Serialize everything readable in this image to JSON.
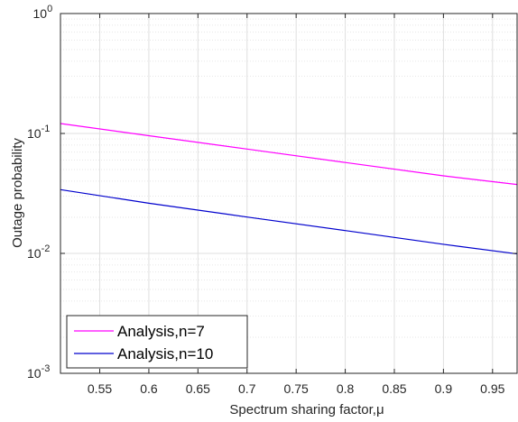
{
  "chart_data": {
    "type": "line",
    "xlabel": "Spectrum sharing factor,μ",
    "ylabel": "Outage probability",
    "xlim": [
      0.51,
      0.975
    ],
    "ylim": [
      0.001,
      1
    ],
    "yscale": "log",
    "grid": true,
    "x_ticks": [
      0.55,
      0.6,
      0.65,
      0.7,
      0.75,
      0.8,
      0.85,
      0.9,
      0.95
    ],
    "x_tick_labels": [
      "0.55",
      "0.6",
      "0.65",
      "0.7",
      "0.75",
      "0.8",
      "0.85",
      "0.9",
      "0.95"
    ],
    "y_ticks": [
      {
        "value": 0.001,
        "base": "10",
        "exp": "-3"
      },
      {
        "value": 0.01,
        "base": "10",
        "exp": "-2"
      },
      {
        "value": 0.1,
        "base": "10",
        "exp": "-1"
      },
      {
        "value": 1,
        "base": "10",
        "exp": "0"
      }
    ],
    "legend_position": "bottom-left",
    "series": [
      {
        "name": "Analysis,n=7",
        "color": "#ff00ff",
        "x": [
          0.51,
          0.6,
          0.7,
          0.8,
          0.9,
          0.975
        ],
        "y": [
          0.121,
          0.0958,
          0.0741,
          0.0573,
          0.0443,
          0.0375
        ]
      },
      {
        "name": "Analysis,n=10",
        "color": "#0000cd",
        "x": [
          0.51,
          0.6,
          0.7,
          0.8,
          0.9,
          0.975
        ],
        "y": [
          0.034,
          0.0262,
          0.0201,
          0.0155,
          0.0119,
          0.0099
        ]
      }
    ]
  }
}
